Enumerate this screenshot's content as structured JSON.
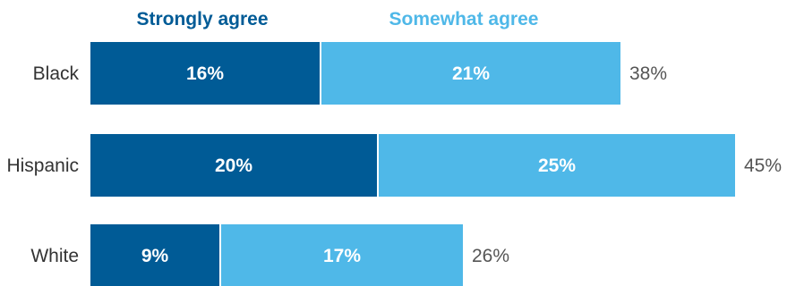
{
  "chart_data": {
    "type": "bar",
    "orientation": "horizontal",
    "stacked": true,
    "categories": [
      "Black",
      "Hispanic",
      "White"
    ],
    "series": [
      {
        "name": "Strongly agree",
        "values": [
          16,
          20,
          9
        ],
        "labels": [
          "16%",
          "20%",
          "9%"
        ],
        "color": "#005b96"
      },
      {
        "name": "Somewhat agree",
        "values": [
          21,
          25,
          17
        ],
        "labels": [
          "21%",
          "25%",
          "17%"
        ],
        "color": "#4fb8e8"
      }
    ],
    "totals": [
      38,
      45,
      26
    ],
    "total_labels": [
      "38%",
      "45%",
      "26%"
    ],
    "legend_position": "top",
    "grid": false
  }
}
